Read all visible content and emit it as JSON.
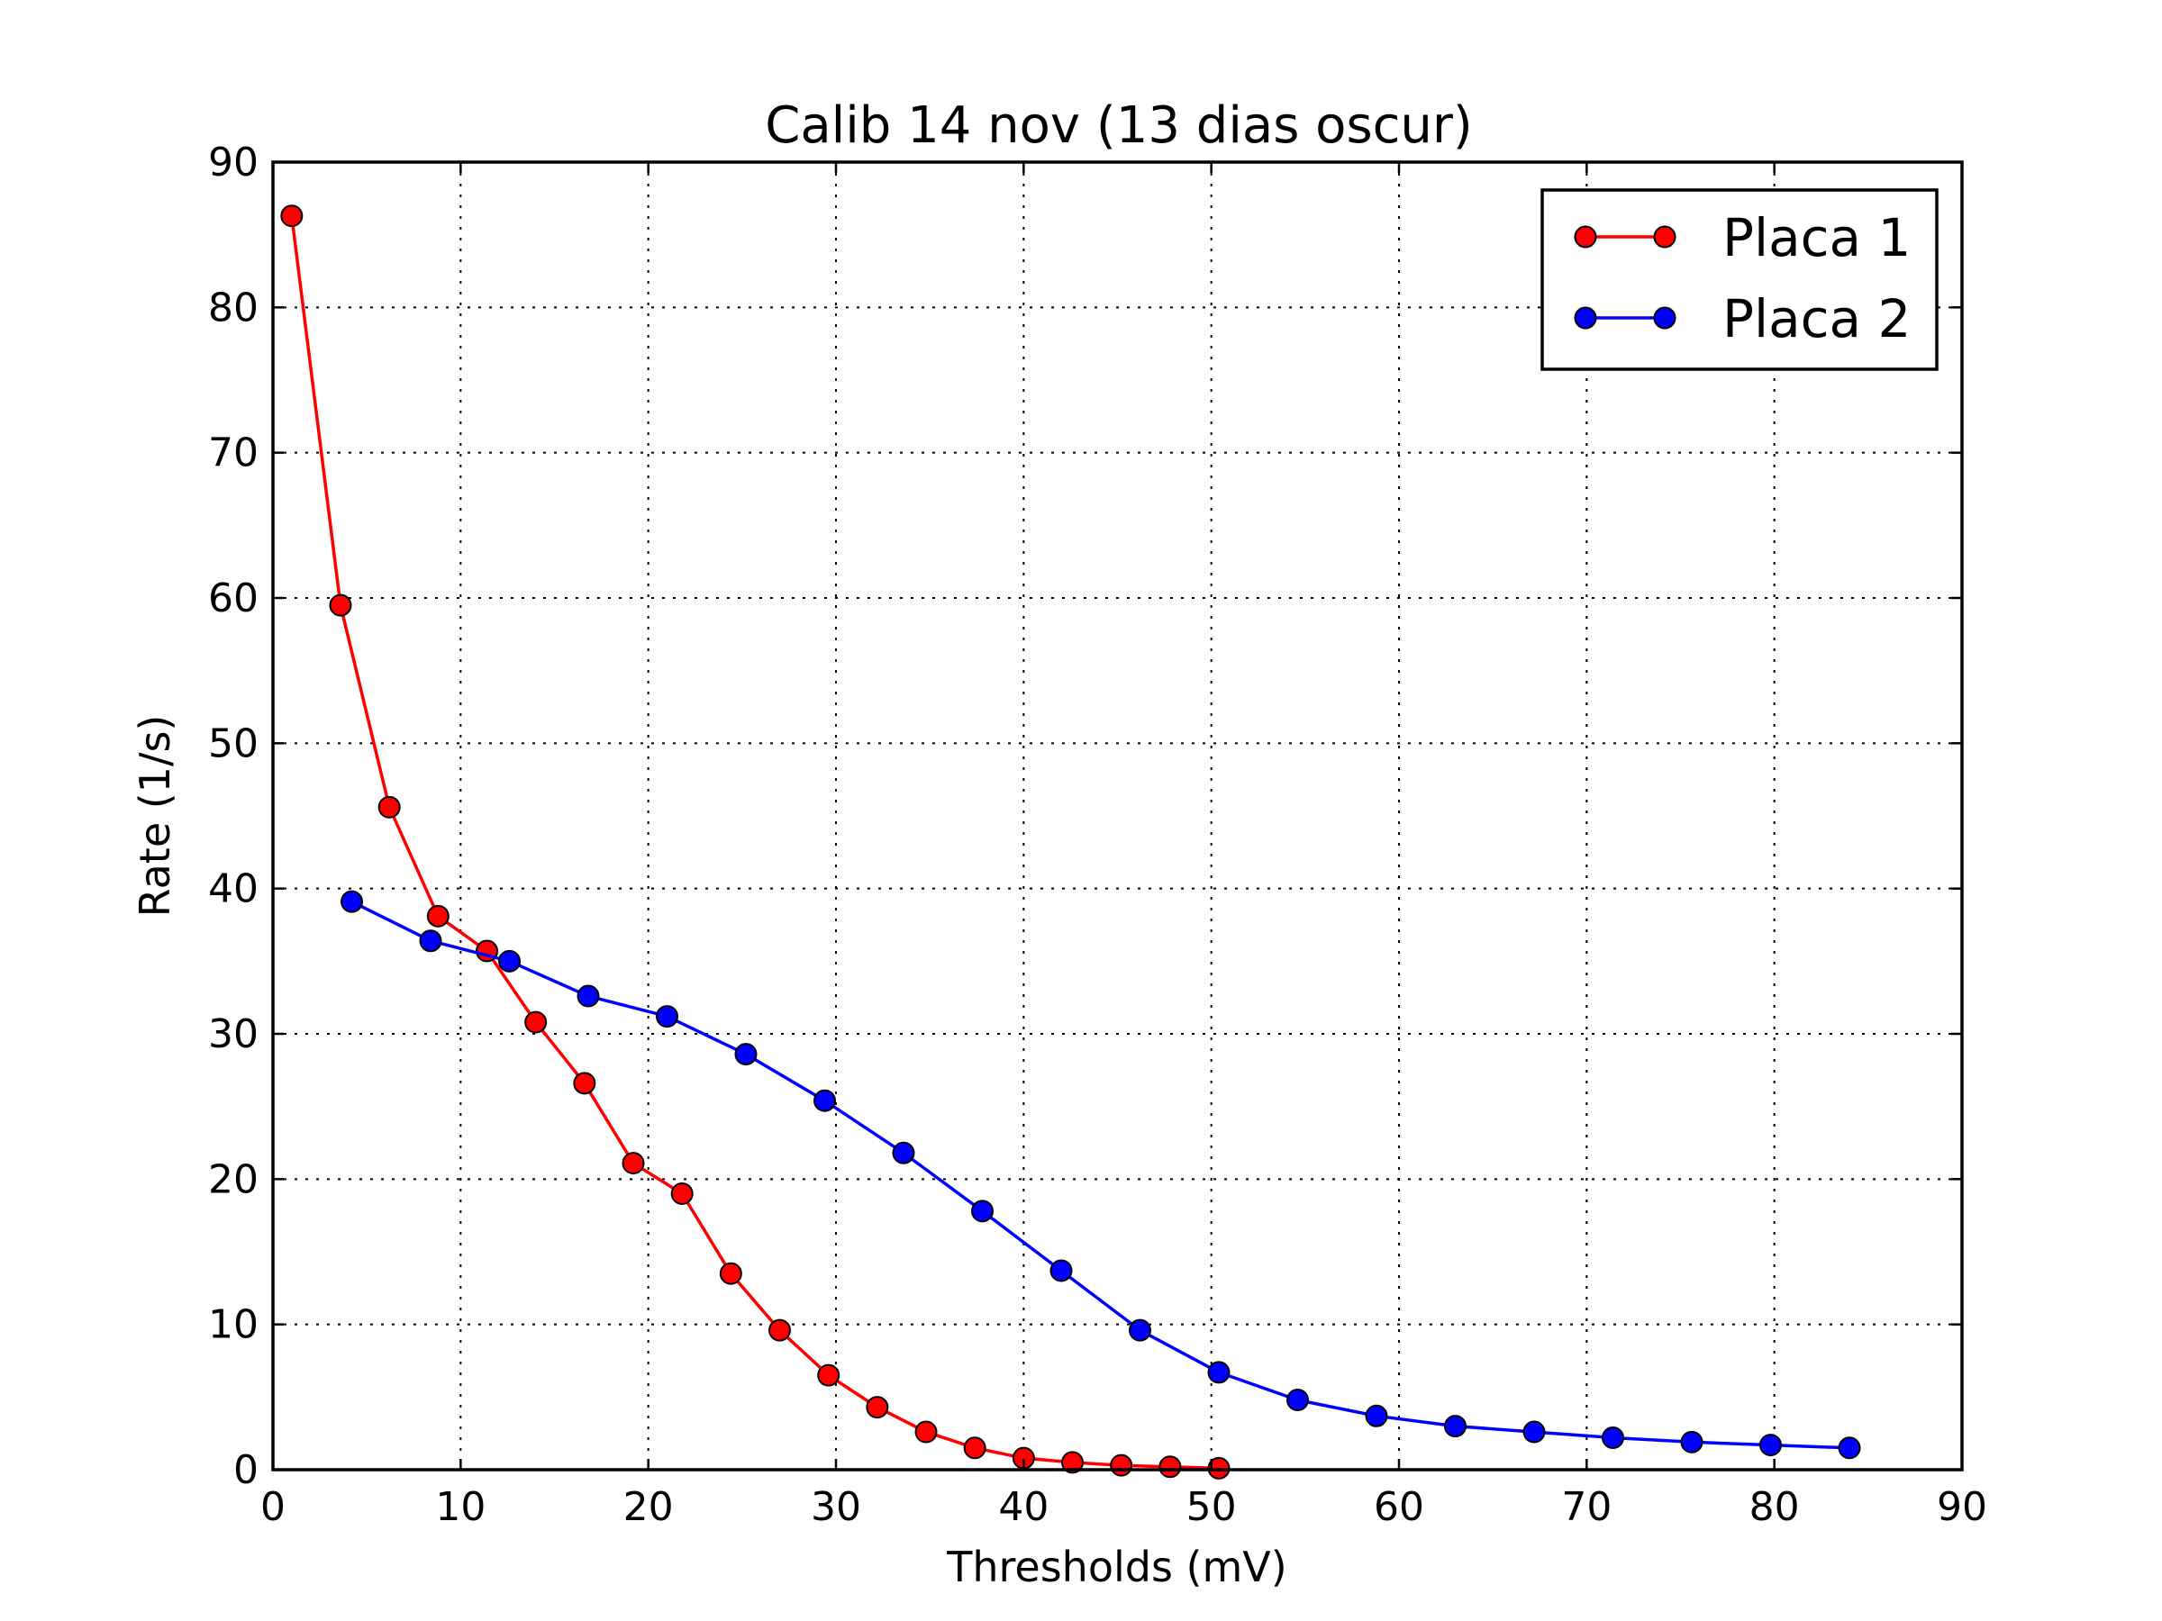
{
  "chart_data": {
    "type": "line",
    "title": "Calib 14 nov (13 dias oscur)",
    "xlabel": "Thresholds (mV)",
    "ylabel": "Rate (1/s)",
    "xlim": [
      0,
      90
    ],
    "ylim": [
      0,
      90
    ],
    "xticks": [
      0,
      10,
      20,
      30,
      40,
      50,
      60,
      70,
      80,
      90
    ],
    "yticks": [
      0,
      10,
      20,
      30,
      40,
      50,
      60,
      70,
      80,
      90
    ],
    "grid": true,
    "legend_position": "top-right",
    "series": [
      {
        "name": "Placa 1",
        "color": "#ff0000",
        "marker": "circle",
        "x": [
          1.0,
          3.6,
          6.2,
          8.8,
          11.4,
          14.0,
          16.6,
          19.2,
          21.8,
          24.4,
          27.0,
          29.6,
          32.2,
          34.8,
          37.4,
          40.0,
          42.6,
          45.2,
          47.8,
          50.4
        ],
        "y": [
          86.3,
          59.5,
          45.6,
          38.1,
          35.7,
          30.8,
          26.6,
          21.1,
          19.0,
          13.5,
          9.6,
          6.5,
          4.3,
          2.6,
          1.5,
          0.8,
          0.5,
          0.3,
          0.2,
          0.1
        ]
      },
      {
        "name": "Placa 2",
        "color": "#0000ff",
        "marker": "circle",
        "x": [
          4.2,
          8.4,
          12.6,
          16.8,
          21.0,
          25.2,
          29.4,
          33.6,
          37.8,
          42.0,
          46.2,
          50.4,
          54.6,
          58.8,
          63.0,
          67.2,
          71.4,
          75.6,
          79.8,
          84.0
        ],
        "y": [
          39.1,
          36.4,
          35.0,
          32.6,
          31.2,
          28.6,
          25.4,
          21.8,
          17.8,
          13.7,
          9.6,
          6.7,
          4.8,
          3.7,
          3.0,
          2.6,
          2.2,
          1.9,
          1.7,
          1.5
        ]
      }
    ]
  }
}
